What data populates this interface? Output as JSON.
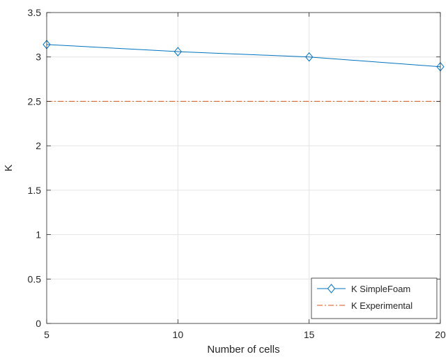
{
  "chart_data": {
    "type": "line",
    "title": "",
    "xlabel": "Number of cells",
    "ylabel": "K",
    "xlim": [
      5,
      20
    ],
    "ylim": [
      0,
      3.5
    ],
    "xticks": [
      5,
      10,
      15,
      20
    ],
    "xtick_labels": [
      "5",
      "10",
      "15",
      "20"
    ],
    "yticks": [
      0,
      0.5,
      1,
      1.5,
      2,
      2.5,
      3,
      3.5
    ],
    "ytick_labels": [
      "0",
      "0.5",
      "1",
      "1.5",
      "2",
      "2.5",
      "3",
      "3.5"
    ],
    "grid": true,
    "legend_position": "bottom-right",
    "series": [
      {
        "name": "K SimpleFoam",
        "x": [
          5,
          10,
          15,
          20
        ],
        "values": [
          3.14,
          3.06,
          3.0,
          2.89
        ],
        "color": "#0072BD",
        "line_style": "solid",
        "marker": "diamond"
      },
      {
        "name": "K Experimental",
        "x": [
          5,
          20
        ],
        "values": [
          2.5,
          2.5
        ],
        "color": "#D95319",
        "line_style": "dash-dot",
        "marker": "none"
      }
    ]
  }
}
